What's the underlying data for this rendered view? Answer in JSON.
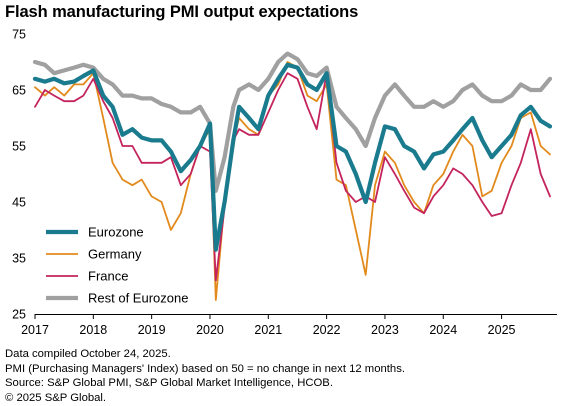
{
  "title": "Flash manufacturing PMI output expectations",
  "footnotes": [
    "Data compiled October 24, 2025.",
    "PMI (Purchasing Managers' Index) based on 50 = no change in next 12 months.",
    "Source: S&P Global PMI, S&P Global Market Intelligence, HCOB.",
    "© 2025 S&P Global."
  ],
  "chart_data": {
    "type": "line",
    "title": "Flash manufacturing PMI output expectations",
    "xlabel": "",
    "ylabel": "",
    "ylim": [
      25,
      75
    ],
    "yticks": [
      25,
      35,
      45,
      55,
      65,
      75
    ],
    "xlim": [
      2017.0,
      2025.95
    ],
    "xticks": [
      2017,
      2018,
      2019,
      2020,
      2021,
      2022,
      2023,
      2024,
      2025
    ],
    "grid": false,
    "legend_position": "bottom-left",
    "x": [
      2017.0,
      2017.17,
      2017.33,
      2017.5,
      2017.67,
      2017.83,
      2018.0,
      2018.17,
      2018.33,
      2018.5,
      2018.67,
      2018.83,
      2019.0,
      2019.17,
      2019.33,
      2019.5,
      2019.67,
      2019.83,
      2020.0,
      2020.1,
      2020.25,
      2020.4,
      2020.5,
      2020.67,
      2020.83,
      2021.0,
      2021.17,
      2021.33,
      2021.5,
      2021.67,
      2021.83,
      2022.0,
      2022.17,
      2022.33,
      2022.5,
      2022.67,
      2022.83,
      2023.0,
      2023.17,
      2023.33,
      2023.5,
      2023.67,
      2023.83,
      2024.0,
      2024.17,
      2024.33,
      2024.5,
      2024.67,
      2024.83,
      2025.0,
      2025.17,
      2025.33,
      2025.5,
      2025.67,
      2025.83
    ],
    "series": [
      {
        "name": "Eurozone",
        "color": "#1a7b8e",
        "width": 4.2,
        "values": [
          67,
          66.5,
          67,
          66.2,
          66.5,
          67.5,
          68.5,
          64,
          62,
          57,
          58,
          56.5,
          56,
          56,
          54,
          50.5,
          52.5,
          55,
          59,
          36.5,
          45,
          56,
          62,
          60,
          58,
          64,
          67,
          69.5,
          69,
          66,
          65,
          68,
          55,
          54,
          50,
          45,
          52,
          58.5,
          58,
          55,
          54,
          51,
          53.5,
          54,
          56,
          58,
          60,
          56,
          53,
          55,
          57,
          60.5,
          62,
          59.5,
          58.5
        ]
      },
      {
        "name": "Germany",
        "color": "#e28a1c",
        "width": 1.8,
        "values": [
          65.5,
          64,
          65.5,
          64,
          66,
          66,
          68,
          60,
          52,
          49,
          48,
          49,
          46,
          45,
          40,
          43,
          50,
          55,
          58,
          27.5,
          45,
          56,
          60,
          58,
          57,
          64,
          66,
          70,
          69,
          64,
          63,
          66,
          49,
          48,
          40,
          32,
          48,
          54,
          52,
          48,
          45,
          43,
          48,
          50,
          54,
          57,
          55,
          46,
          47,
          52,
          55,
          60,
          61,
          55,
          53.5
        ]
      },
      {
        "name": "France",
        "color": "#c4245d",
        "width": 1.8,
        "values": [
          62,
          65,
          64,
          63,
          63,
          64,
          67,
          63,
          60,
          55,
          55,
          52,
          52,
          52,
          53,
          48,
          50,
          55,
          54,
          31,
          44,
          56,
          58,
          57,
          57,
          61,
          65,
          68,
          67,
          62,
          58,
          68,
          52,
          47,
          45,
          46,
          45,
          53,
          50,
          47,
          44,
          43,
          46,
          48,
          51,
          50,
          48,
          45,
          42.5,
          43,
          48,
          52,
          58,
          50,
          46
        ]
      },
      {
        "name": "Rest of Eurozone",
        "color": "#a0a0a0",
        "width": 4.2,
        "values": [
          70,
          69.5,
          68,
          68.5,
          69,
          69.5,
          69,
          67,
          66,
          64,
          64,
          63.5,
          63.5,
          62.5,
          62,
          61,
          61,
          62,
          59,
          47,
          53,
          62,
          65,
          66,
          65,
          67,
          70,
          71.5,
          70.5,
          68,
          67.5,
          69,
          62,
          60,
          58,
          55,
          60,
          64,
          66,
          64,
          62,
          62,
          63,
          62,
          63,
          65,
          66,
          64,
          63,
          63,
          64,
          66,
          65,
          65,
          67
        ]
      }
    ]
  }
}
